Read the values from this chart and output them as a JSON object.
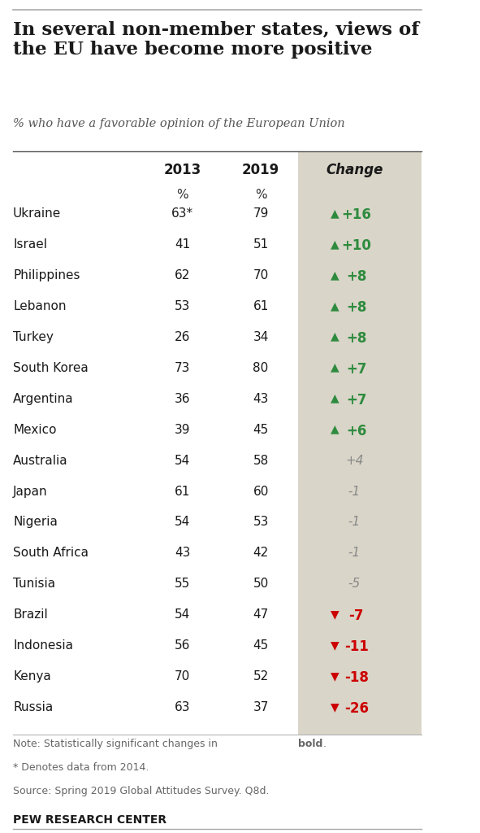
{
  "title": "In several non-member states, views of\nthe EU have become more positive",
  "subtitle": "% who have a favorable opinion of the European Union",
  "col_headers": [
    "2013",
    "2019",
    "Change"
  ],
  "percent_label": "%",
  "countries": [
    "Ukraine",
    "Israel",
    "Philippines",
    "Lebanon",
    "Turkey",
    "South Korea",
    "Argentina",
    "Mexico",
    "Australia",
    "Japan",
    "Nigeria",
    "South Africa",
    "Tunisia",
    "Brazil",
    "Indonesia",
    "Kenya",
    "Russia"
  ],
  "val_2013": [
    "63*",
    "41",
    "62",
    "53",
    "26",
    "73",
    "36",
    "39",
    "54",
    "61",
    "54",
    "43",
    "55",
    "54",
    "56",
    "70",
    "63"
  ],
  "val_2019": [
    "79",
    "51",
    "70",
    "61",
    "34",
    "80",
    "43",
    "45",
    "58",
    "60",
    "53",
    "42",
    "50",
    "47",
    "45",
    "52",
    "37"
  ],
  "change_vals": [
    16,
    10,
    8,
    8,
    8,
    7,
    7,
    6,
    4,
    -1,
    -1,
    -1,
    -5,
    -7,
    -11,
    -18,
    -26
  ],
  "change_labels": [
    "+16",
    "+10",
    "+8",
    "+8",
    "+8",
    "+7",
    "+7",
    "+6",
    "+4",
    "-1",
    "-1",
    "-1",
    "-5",
    "-7",
    "-11",
    "-18",
    "-26"
  ],
  "significant": [
    true,
    true,
    true,
    true,
    true,
    true,
    true,
    true,
    false,
    false,
    false,
    false,
    false,
    true,
    true,
    true,
    true
  ],
  "bg_color": "#ffffff",
  "change_bg_color": "#d9d5c8",
  "green_color": "#2e8b3e",
  "red_color": "#cc0000",
  "neutral_color": "#888888",
  "note_text": "Note: Statistically significant changes in bold.\n* Denotes data from 2014.\nSource: Spring 2019 Global Attitudes Survey. Q8d.",
  "footer_text": "PEW RESEARCH CENTER"
}
